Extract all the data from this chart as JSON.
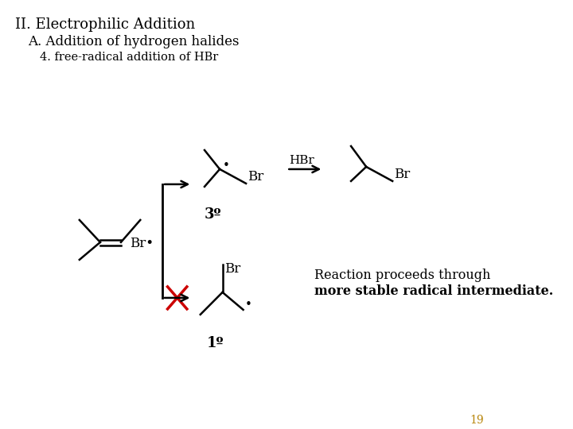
{
  "title_line1": "II. Electrophilic Addition",
  "title_line2": "A. Addition of hydrogen halides",
  "title_line3": "4. free-radical addition of HBr",
  "background_color": "#ffffff",
  "text_color": "#000000",
  "red_color": "#cc0000",
  "gold_color": "#b8860b",
  "page_number": "19",
  "reaction_note_line1": "Reaction proceeds through",
  "reaction_note_line2": "more stable radical intermediate.",
  "label_3o": "3º",
  "label_1o": "1º",
  "label_HBr": "HBr",
  "label_Br_radical": "Br•",
  "label_Br1": "Br",
  "label_Br2": "Br",
  "label_Br3": "Br",
  "label_radical_dot": "•"
}
